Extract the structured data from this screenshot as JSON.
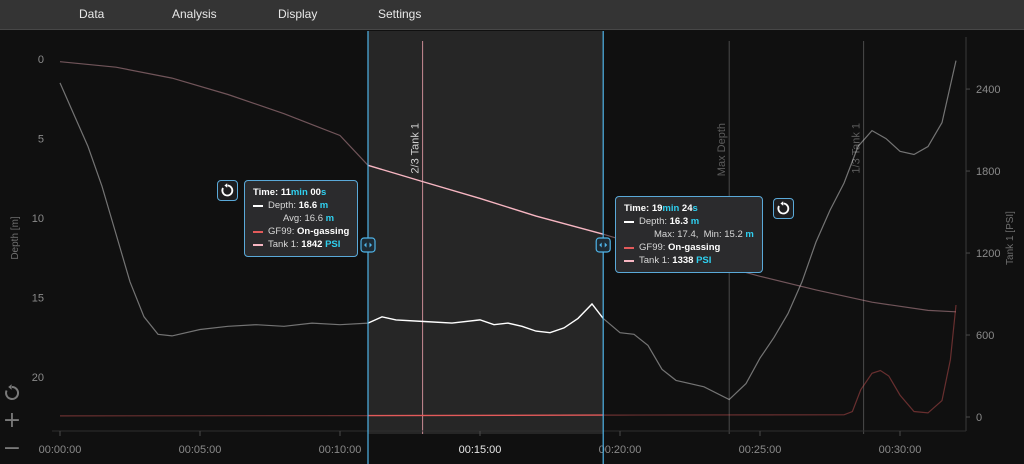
{
  "menu": {
    "data": "Data",
    "analysis": "Analysis",
    "display": "Display",
    "settings": "Settings"
  },
  "chart_data": {
    "type": "line",
    "y_left_label": "Depth [m]",
    "y_left_ticks": [
      "0",
      "5",
      "10",
      "15",
      "20"
    ],
    "y_left_range": [
      0,
      22.5
    ],
    "y_left_inverted": true,
    "y_right_label": "Tank 1 [PSI]",
    "y_right_ticks": [
      "0",
      "600",
      "1200",
      "1800",
      "2400"
    ],
    "y_right_range": [
      0,
      2620
    ],
    "x_ticks": [
      "00:00:00",
      "00:05:00",
      "00:10:00",
      "00:15:00",
      "00:20:00",
      "00:25:00",
      "00:30:00"
    ],
    "x_range_min": [
      0,
      32
    ],
    "selection_min": [
      11,
      19.4
    ],
    "markers": [
      {
        "label": "2/3 Tank 1",
        "t_min": 12.95
      },
      {
        "label": "Max Depth",
        "t_min": 23.9
      },
      {
        "label": "1/3 Tank 1",
        "t_min": 28.7
      }
    ],
    "series": [
      {
        "name": "Depth",
        "color": "#ffffff",
        "axis": "left",
        "points": [
          [
            0,
            1.5
          ],
          [
            0.5,
            3.5
          ],
          [
            1,
            5.5
          ],
          [
            1.5,
            8
          ],
          [
            2,
            11
          ],
          [
            2.5,
            14
          ],
          [
            3,
            16.2
          ],
          [
            3.5,
            17.3
          ],
          [
            4,
            17.4
          ],
          [
            5,
            17
          ],
          [
            6,
            16.8
          ],
          [
            7,
            16.7
          ],
          [
            8,
            16.8
          ],
          [
            9,
            16.6
          ],
          [
            10,
            16.7
          ],
          [
            11,
            16.6
          ],
          [
            11.5,
            16.2
          ],
          [
            12,
            16.4
          ],
          [
            13,
            16.5
          ],
          [
            14,
            16.6
          ],
          [
            15,
            16.4
          ],
          [
            15.5,
            16.7
          ],
          [
            16,
            16.6
          ],
          [
            16.5,
            16.8
          ],
          [
            17,
            17.1
          ],
          [
            17.5,
            17.2
          ],
          [
            18,
            16.9
          ],
          [
            18.5,
            16.3
          ],
          [
            19,
            15.4
          ],
          [
            19.4,
            16.3
          ],
          [
            20,
            17.2
          ],
          [
            20.5,
            17.3
          ],
          [
            21,
            18
          ],
          [
            21.5,
            19.5
          ],
          [
            22,
            20.2
          ],
          [
            23,
            20.6
          ],
          [
            23.9,
            21.4
          ],
          [
            24.5,
            20.4
          ],
          [
            25,
            18.8
          ],
          [
            25.5,
            17.5
          ],
          [
            26,
            16
          ],
          [
            26.5,
            14
          ],
          [
            27,
            11.5
          ],
          [
            27.5,
            9.5
          ],
          [
            28,
            7.8
          ],
          [
            28.5,
            5.5
          ],
          [
            29,
            4.5
          ],
          [
            29.5,
            5
          ],
          [
            30,
            5.8
          ],
          [
            30.5,
            6
          ],
          [
            31,
            5.5
          ],
          [
            31.5,
            4
          ],
          [
            32,
            0.1
          ]
        ]
      },
      {
        "name": "Tank 1",
        "color": "#f7b6c2",
        "axis": "right",
        "points": [
          [
            0,
            2600
          ],
          [
            2,
            2560
          ],
          [
            4,
            2480
          ],
          [
            6,
            2360
          ],
          [
            8,
            2220
          ],
          [
            10,
            2060
          ],
          [
            11,
            1842
          ],
          [
            13,
            1720
          ],
          [
            15,
            1600
          ],
          [
            17,
            1470
          ],
          [
            19.4,
            1338
          ],
          [
            21,
            1240
          ],
          [
            23,
            1140
          ],
          [
            25,
            1030
          ],
          [
            27,
            930
          ],
          [
            29,
            840
          ],
          [
            31,
            780
          ],
          [
            32,
            770
          ]
        ]
      },
      {
        "name": "GF99",
        "color": "#e35a5a",
        "axis": "right",
        "points": [
          [
            0,
            8
          ],
          [
            10,
            10
          ],
          [
            20,
            14
          ],
          [
            28,
            16
          ],
          [
            28.3,
            40
          ],
          [
            28.6,
            200
          ],
          [
            29,
            320
          ],
          [
            29.3,
            340
          ],
          [
            29.6,
            300
          ],
          [
            30,
            160
          ],
          [
            30.5,
            40
          ],
          [
            31,
            30
          ],
          [
            31.5,
            120
          ],
          [
            31.8,
            420
          ],
          [
            32,
            820
          ]
        ]
      }
    ]
  },
  "cursor_left": {
    "time_label": "Time:",
    "time_min": "11",
    "time_sec": "00",
    "min_unit": "min",
    "sec_unit": "s",
    "depth_label": "Depth:",
    "depth_value": "16.6",
    "depth_unit": "m",
    "avg_label": "Avg:",
    "avg_value": "16.6",
    "avg_unit": "m",
    "gf_label": "GF99:",
    "gf_value": "On-gassing",
    "tank_label": "Tank 1:",
    "tank_value": "1842",
    "tank_unit": "PSI"
  },
  "cursor_right": {
    "time_label": "Time:",
    "time_min": "19",
    "time_sec": "24",
    "min_unit": "min",
    "sec_unit": "s",
    "depth_label": "Depth:",
    "depth_value": "16.3",
    "depth_unit": "m",
    "max_label": "Max:",
    "max_value": "17.4,",
    "min_label": "Min:",
    "min_value": "15.2",
    "min_unit_m": "m",
    "gf_label": "GF99:",
    "gf_value": "On-gassing",
    "tank_label": "Tank 1:",
    "tank_value": "1338",
    "tank_unit": "PSI"
  },
  "colors": {
    "accent": "#5aa9d8",
    "unit_highlight": "#2fd0f0",
    "depth_line": "#ffffff",
    "tank_line": "#f7b6c2",
    "gf_line": "#e35a5a"
  },
  "icons": {
    "reset": "reset-icon",
    "zoom_in": "plus-icon",
    "zoom_out": "minus-icon"
  }
}
